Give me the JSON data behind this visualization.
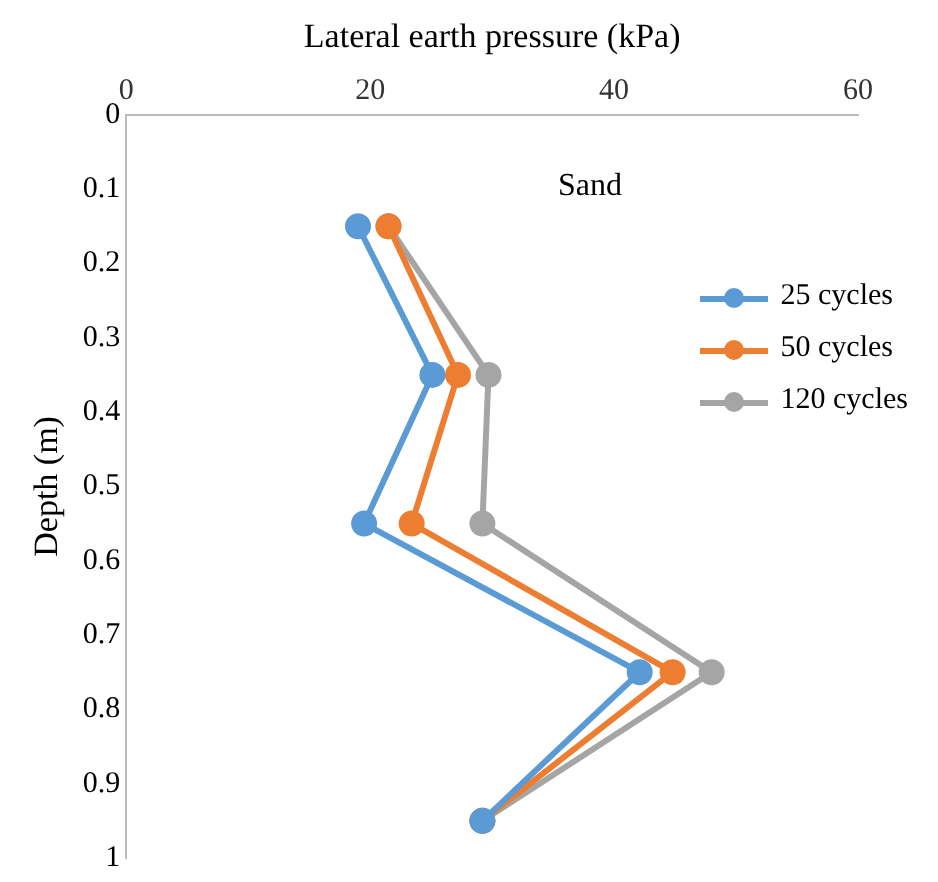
{
  "chart_data": {
    "type": "line",
    "xlabel": "Lateral earth pressure (kPa)",
    "ylabel": "Depth (m)",
    "annotations": [
      "Sand"
    ],
    "xlim": [
      0,
      60
    ],
    "xticks": [
      0,
      20,
      40,
      60
    ],
    "ylim": [
      1,
      0
    ],
    "yticks": [
      0,
      0.1,
      0.2,
      0.3,
      0.4,
      0.5,
      0.6,
      0.7,
      0.8,
      0.9,
      1
    ],
    "grid": false,
    "legend": "right",
    "marker": "circle",
    "line_style": "solid",
    "series": [
      {
        "name": "25 cycles",
        "color": "#5b9bd5",
        "x": [
          19,
          25.1,
          19.5,
          42.1,
          29.2
        ],
        "values": [
          0.15,
          0.35,
          0.55,
          0.75,
          0.95
        ]
      },
      {
        "name": "50 cycles",
        "color": "#ed7d31",
        "x": [
          21.5,
          27.2,
          23.4,
          44.8,
          29.2
        ],
        "values": [
          0.15,
          0.35,
          0.55,
          0.75,
          0.95
        ]
      },
      {
        "name": "120 cycles",
        "color": "#a5a5a5",
        "x": [
          21.5,
          29.7,
          29.2,
          48,
          29.2
        ],
        "values": [
          0.15,
          0.35,
          0.55,
          0.75,
          0.95
        ]
      }
    ]
  }
}
